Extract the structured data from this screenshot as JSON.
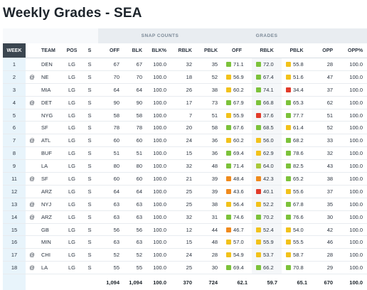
{
  "title": "Weekly Grades - SEA",
  "groups": {
    "snap": "SNAP COUNTS",
    "grades": "GRADES"
  },
  "columns": [
    "WEEK",
    "",
    "TEAM",
    "POS",
    "S",
    "OFF",
    "BLK",
    "BLK%",
    "RBLK",
    "PBLK",
    "OFF",
    "RBLK",
    "PBLK",
    "OPP",
    "OPP%"
  ],
  "colors": {
    "green": "#7cc23a",
    "yellow": "#f2c21a",
    "orange": "#f08a1c",
    "red": "#e23b2a",
    "lime": "#a9c93a"
  },
  "rows": [
    {
      "week": "1",
      "at": "",
      "team": "DEN",
      "pos": "LG",
      "s": "S",
      "off": "67",
      "blk": "67",
      "blkp": "100.0",
      "rblk": "32",
      "pblk": "35",
      "g_off": "71.1",
      "c_off": "green",
      "g_rblk": "72.0",
      "c_rblk": "green",
      "g_pblk": "55.8",
      "c_pblk": "yellow",
      "opp": "28",
      "oppp": "100.0"
    },
    {
      "week": "2",
      "at": "@",
      "team": "NE",
      "pos": "LG",
      "s": "S",
      "off": "70",
      "blk": "70",
      "blkp": "100.0",
      "rblk": "18",
      "pblk": "52",
      "g_off": "56.9",
      "c_off": "yellow",
      "g_rblk": "67.4",
      "c_rblk": "green",
      "g_pblk": "51.6",
      "c_pblk": "yellow",
      "opp": "47",
      "oppp": "100.0"
    },
    {
      "week": "3",
      "at": "",
      "team": "MIA",
      "pos": "LG",
      "s": "S",
      "off": "64",
      "blk": "64",
      "blkp": "100.0",
      "rblk": "26",
      "pblk": "38",
      "g_off": "60.2",
      "c_off": "yellow",
      "g_rblk": "74.1",
      "c_rblk": "green",
      "g_pblk": "34.4",
      "c_pblk": "red",
      "opp": "37",
      "oppp": "100.0"
    },
    {
      "week": "4",
      "at": "@",
      "team": "DET",
      "pos": "LG",
      "s": "S",
      "off": "90",
      "blk": "90",
      "blkp": "100.0",
      "rblk": "17",
      "pblk": "73",
      "g_off": "67.9",
      "c_off": "green",
      "g_rblk": "66.8",
      "c_rblk": "green",
      "g_pblk": "65.3",
      "c_pblk": "green",
      "opp": "62",
      "oppp": "100.0"
    },
    {
      "week": "5",
      "at": "",
      "team": "NYG",
      "pos": "LG",
      "s": "S",
      "off": "58",
      "blk": "58",
      "blkp": "100.0",
      "rblk": "7",
      "pblk": "51",
      "g_off": "55.9",
      "c_off": "yellow",
      "g_rblk": "37.6",
      "c_rblk": "red",
      "g_pblk": "77.7",
      "c_pblk": "green",
      "opp": "51",
      "oppp": "100.0"
    },
    {
      "week": "6",
      "at": "",
      "team": "SF",
      "pos": "LG",
      "s": "S",
      "off": "78",
      "blk": "78",
      "blkp": "100.0",
      "rblk": "20",
      "pblk": "58",
      "g_off": "67.6",
      "c_off": "green",
      "g_rblk": "68.5",
      "c_rblk": "green",
      "g_pblk": "61.4",
      "c_pblk": "yellow",
      "opp": "52",
      "oppp": "100.0"
    },
    {
      "week": "7",
      "at": "@",
      "team": "ATL",
      "pos": "LG",
      "s": "S",
      "off": "60",
      "blk": "60",
      "blkp": "100.0",
      "rblk": "24",
      "pblk": "36",
      "g_off": "60.2",
      "c_off": "yellow",
      "g_rblk": "56.0",
      "c_rblk": "yellow",
      "g_pblk": "68.2",
      "c_pblk": "green",
      "opp": "33",
      "oppp": "100.0"
    },
    {
      "week": "8",
      "at": "",
      "team": "BUF",
      "pos": "LG",
      "s": "S",
      "off": "51",
      "blk": "51",
      "blkp": "100.0",
      "rblk": "15",
      "pblk": "36",
      "g_off": "69.4",
      "c_off": "green",
      "g_rblk": "62.9",
      "c_rblk": "yellow",
      "g_pblk": "78.6",
      "c_pblk": "green",
      "opp": "32",
      "oppp": "100.0"
    },
    {
      "week": "9",
      "at": "",
      "team": "LA",
      "pos": "LG",
      "s": "S",
      "off": "80",
      "blk": "80",
      "blkp": "100.0",
      "rblk": "32",
      "pblk": "48",
      "g_off": "71.4",
      "c_off": "green",
      "g_rblk": "64.0",
      "c_rblk": "lime",
      "g_pblk": "82.5",
      "c_pblk": "green",
      "opp": "43",
      "oppp": "100.0"
    },
    {
      "week": "11",
      "at": "@",
      "team": "SF",
      "pos": "LG",
      "s": "S",
      "off": "60",
      "blk": "60",
      "blkp": "100.0",
      "rblk": "21",
      "pblk": "39",
      "g_off": "48.4",
      "c_off": "orange",
      "g_rblk": "42.3",
      "c_rblk": "orange",
      "g_pblk": "65.2",
      "c_pblk": "green",
      "opp": "38",
      "oppp": "100.0"
    },
    {
      "week": "12",
      "at": "",
      "team": "ARZ",
      "pos": "LG",
      "s": "S",
      "off": "64",
      "blk": "64",
      "blkp": "100.0",
      "rblk": "25",
      "pblk": "39",
      "g_off": "43.6",
      "c_off": "orange",
      "g_rblk": "40.1",
      "c_rblk": "red",
      "g_pblk": "55.6",
      "c_pblk": "yellow",
      "opp": "37",
      "oppp": "100.0"
    },
    {
      "week": "13",
      "at": "@",
      "team": "NYJ",
      "pos": "LG",
      "s": "S",
      "off": "63",
      "blk": "63",
      "blkp": "100.0",
      "rblk": "25",
      "pblk": "38",
      "g_off": "56.4",
      "c_off": "yellow",
      "g_rblk": "52.2",
      "c_rblk": "yellow",
      "g_pblk": "67.8",
      "c_pblk": "green",
      "opp": "35",
      "oppp": "100.0"
    },
    {
      "week": "14",
      "at": "@",
      "team": "ARZ",
      "pos": "LG",
      "s": "S",
      "off": "63",
      "blk": "63",
      "blkp": "100.0",
      "rblk": "32",
      "pblk": "31",
      "g_off": "74.6",
      "c_off": "green",
      "g_rblk": "70.2",
      "c_rblk": "green",
      "g_pblk": "76.6",
      "c_pblk": "green",
      "opp": "30",
      "oppp": "100.0"
    },
    {
      "week": "15",
      "at": "",
      "team": "GB",
      "pos": "LG",
      "s": "S",
      "off": "56",
      "blk": "56",
      "blkp": "100.0",
      "rblk": "12",
      "pblk": "44",
      "g_off": "46.7",
      "c_off": "orange",
      "g_rblk": "52.4",
      "c_rblk": "yellow",
      "g_pblk": "54.0",
      "c_pblk": "yellow",
      "opp": "42",
      "oppp": "100.0"
    },
    {
      "week": "16",
      "at": "",
      "team": "MIN",
      "pos": "LG",
      "s": "S",
      "off": "63",
      "blk": "63",
      "blkp": "100.0",
      "rblk": "15",
      "pblk": "48",
      "g_off": "57.0",
      "c_off": "yellow",
      "g_rblk": "55.9",
      "c_rblk": "yellow",
      "g_pblk": "55.5",
      "c_pblk": "yellow",
      "opp": "46",
      "oppp": "100.0"
    },
    {
      "week": "17",
      "at": "@",
      "team": "CHI",
      "pos": "LG",
      "s": "S",
      "off": "52",
      "blk": "52",
      "blkp": "100.0",
      "rblk": "24",
      "pblk": "28",
      "g_off": "54.9",
      "c_off": "yellow",
      "g_rblk": "53.7",
      "c_rblk": "yellow",
      "g_pblk": "58.7",
      "c_pblk": "yellow",
      "opp": "28",
      "oppp": "100.0"
    },
    {
      "week": "18",
      "at": "@",
      "team": "LA",
      "pos": "LG",
      "s": "S",
      "off": "55",
      "blk": "55",
      "blkp": "100.0",
      "rblk": "25",
      "pblk": "30",
      "g_off": "69.4",
      "c_off": "green",
      "g_rblk": "66.2",
      "c_rblk": "green",
      "g_pblk": "70.8",
      "c_pblk": "green",
      "opp": "29",
      "oppp": "100.0"
    }
  ],
  "totals": {
    "off": "1,094",
    "blk": "1,094",
    "blkp": "100.0",
    "rblk": "370",
    "pblk": "724",
    "g_off": "62.1",
    "g_rblk": "59.7",
    "g_pblk": "65.1",
    "opp": "670",
    "oppp": "100.0"
  }
}
